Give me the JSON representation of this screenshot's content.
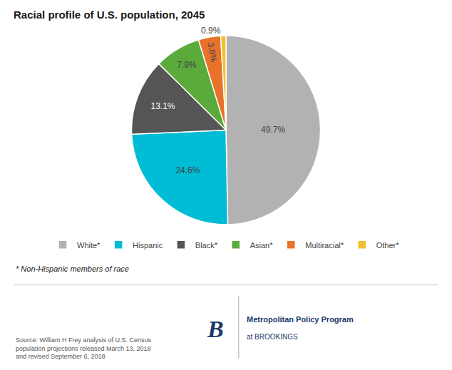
{
  "chart_data": {
    "type": "pie",
    "title": "Racial profile of U.S. population, 2045",
    "categories": [
      "White*",
      "Hispanic",
      "Black*",
      "Asian*",
      "Multiracial*",
      "Other*"
    ],
    "values": [
      49.7,
      24.6,
      13.1,
      7.9,
      3.8,
      0.9
    ],
    "value_labels": [
      "49.7%",
      "24.6%",
      "13.1%",
      "7.9%",
      "3.8%",
      "0.9%"
    ],
    "colors": [
      "#b2b2b2",
      "#00bcd4",
      "#555555",
      "#5aaa3c",
      "#e8722a",
      "#f0c030"
    ],
    "data_labels": true,
    "legend": "bottom",
    "annotations": [
      "* Non-Hispanic members of race",
      "Source: William H Frey analysis of U.S. Census\npopulation projections released March 13, 2018\nand revised September 6, 2018",
      "B",
      "Metropolitan Policy Program",
      "at BROOKINGS"
    ]
  }
}
